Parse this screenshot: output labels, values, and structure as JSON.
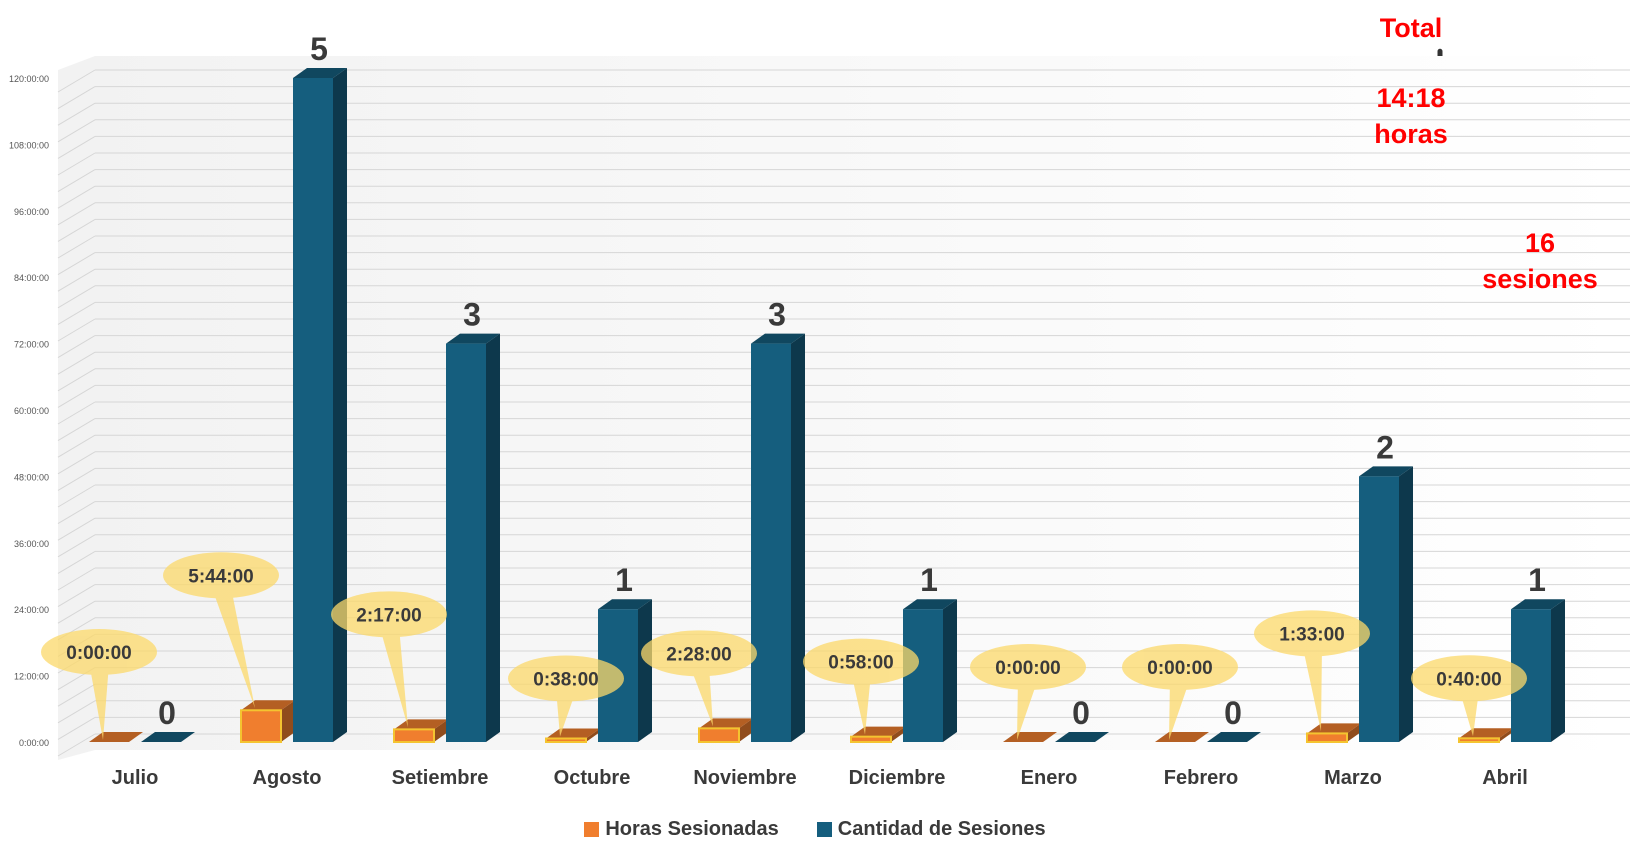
{
  "chart_data": {
    "type": "bar",
    "categories": [
      "Julio",
      "Agosto",
      "Setiembre",
      "Octubre",
      "Noviembre",
      "Diciembre",
      "Enero",
      "Febrero",
      "Marzo",
      "Abril"
    ],
    "ylim": [
      0,
      120
    ],
    "y_ticks": [
      "0:00:00",
      "12:00:00",
      "24:00:00",
      "36:00:00",
      "48:00:00",
      "60:00:00",
      "72:00:00",
      "84:00:00",
      "96:00:00",
      "108:00:00",
      "120:00:00"
    ],
    "grid": true,
    "legend_position": "bottom",
    "series": [
      {
        "name": "Horas Sesionadas",
        "color": "#f07e2e",
        "values": [
          0,
          5.733,
          2.283,
          0.633,
          2.467,
          0.967,
          0,
          0,
          1.55,
          0.667
        ],
        "labels": [
          "0:00:00",
          "5:44:00",
          "2:17:00",
          "0:38:00",
          "2:28:00",
          "0:58:00",
          "0:00:00",
          "0:00:00",
          "1:33:00",
          "0:40:00"
        ]
      },
      {
        "name": "Cantidad de Sesiones",
        "color": "#155e7e",
        "values": [
          0,
          5,
          3,
          1,
          3,
          1,
          0,
          0,
          2,
          1
        ],
        "labels": [
          "0",
          "5",
          "3",
          "1",
          "3",
          "1",
          "0",
          "0",
          "2",
          "1"
        ]
      }
    ]
  },
  "summary": {
    "title": "Total",
    "hours_value": "14:18",
    "hours_unit": "horas",
    "sessions_value": "16",
    "sessions_unit": "sesiones"
  }
}
